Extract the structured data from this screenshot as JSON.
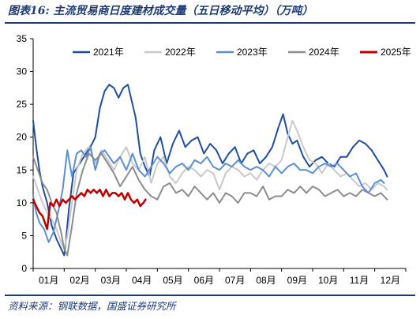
{
  "title": "图表16: 主流贸易商日度建材成交量（五日移动平均）（万吨）",
  "source": "资料来源：钢联数据，国盛证券研究所",
  "chart_data": {
    "type": "line",
    "xlabel": "",
    "ylabel": "",
    "ylim": [
      0,
      35
    ],
    "yticks": [
      0,
      5,
      10,
      15,
      20,
      25,
      30,
      35
    ],
    "xlim": [
      1,
      13
    ],
    "xtick_positions": [
      1,
      2,
      3,
      4,
      5,
      6,
      7,
      8,
      9,
      10,
      11,
      12
    ],
    "xtick_labels": [
      "01月",
      "02月",
      "03月",
      "04月",
      "05月",
      "06月",
      "07月",
      "08月",
      "09月",
      "10月",
      "11月",
      "12月"
    ],
    "grid": false,
    "legend_position": "top",
    "series": [
      {
        "name": "2021年",
        "color": "#1f4e9c",
        "width": 2,
        "x": [
          1.0,
          1.1,
          1.2,
          1.3,
          1.45,
          1.6,
          1.75,
          1.9,
          2.0,
          2.05,
          2.15,
          2.3,
          2.5,
          2.7,
          2.9,
          3.0,
          3.15,
          3.3,
          3.45,
          3.6,
          3.75,
          3.9,
          4.05,
          4.15,
          4.3,
          4.45,
          4.6,
          4.75,
          4.9,
          5.1,
          5.3,
          5.5,
          5.7,
          5.9,
          6.1,
          6.3,
          6.5,
          6.7,
          6.9,
          7.1,
          7.3,
          7.5,
          7.7,
          7.9,
          8.1,
          8.3,
          8.5,
          8.7,
          8.9,
          9.05,
          9.2,
          9.35,
          9.5,
          9.7,
          9.9,
          10.1,
          10.3,
          10.5,
          10.7,
          10.9,
          11.1,
          11.3,
          11.5,
          11.7,
          11.9,
          12.1,
          12.3,
          12.4
        ],
        "y": [
          22.5,
          18.5,
          15.0,
          12.5,
          10.0,
          6.5,
          4.5,
          3.0,
          2.0,
          4.0,
          9.0,
          14.5,
          16.0,
          17.5,
          19.0,
          20.0,
          24.5,
          27.0,
          28.0,
          27.5,
          26.0,
          27.5,
          28.0,
          26.0,
          23.0,
          17.5,
          15.5,
          14.0,
          18.0,
          20.0,
          16.0,
          19.0,
          21.0,
          18.5,
          19.5,
          20.0,
          17.5,
          19.0,
          18.0,
          16.0,
          17.5,
          18.5,
          16.0,
          17.5,
          18.0,
          16.0,
          17.0,
          18.5,
          21.5,
          23.5,
          20.5,
          19.0,
          19.5,
          17.0,
          15.5,
          16.5,
          17.0,
          16.0,
          15.5,
          17.0,
          17.0,
          18.5,
          19.5,
          19.0,
          18.0,
          16.5,
          15.0,
          14.0
        ]
      },
      {
        "name": "2022年",
        "color": "#c9c9c9",
        "width": 2,
        "x": [
          1.0,
          1.15,
          1.3,
          1.45,
          1.6,
          1.75,
          1.9,
          2.0,
          2.1,
          2.25,
          2.4,
          2.6,
          2.8,
          3.0,
          3.2,
          3.4,
          3.6,
          3.8,
          4.0,
          4.2,
          4.4,
          4.6,
          4.8,
          5.0,
          5.2,
          5.4,
          5.6,
          5.8,
          6.0,
          6.2,
          6.4,
          6.6,
          6.8,
          7.0,
          7.2,
          7.4,
          7.6,
          7.8,
          8.0,
          8.2,
          8.4,
          8.6,
          8.8,
          9.0,
          9.2,
          9.35,
          9.5,
          9.7,
          9.9,
          10.1,
          10.3,
          10.5,
          10.7,
          10.9,
          11.1,
          11.3,
          11.5,
          11.7,
          11.9,
          12.1,
          12.3,
          12.4
        ],
        "y": [
          14.0,
          12.0,
          10.0,
          8.5,
          7.5,
          6.0,
          4.0,
          3.0,
          5.0,
          10.0,
          15.0,
          17.5,
          18.5,
          16.0,
          18.0,
          16.5,
          15.0,
          17.0,
          18.5,
          16.0,
          15.0,
          17.0,
          13.0,
          16.0,
          17.0,
          14.0,
          13.0,
          14.5,
          15.5,
          15.0,
          14.0,
          15.0,
          14.5,
          12.0,
          14.5,
          15.5,
          15.0,
          14.0,
          14.5,
          13.5,
          15.0,
          16.0,
          15.5,
          16.5,
          20.0,
          22.5,
          21.0,
          18.5,
          16.5,
          16.0,
          14.5,
          16.0,
          15.0,
          14.0,
          14.5,
          13.5,
          12.5,
          13.0,
          12.0,
          13.0,
          12.5,
          12.0
        ]
      },
      {
        "name": "2023年",
        "color": "#5b8fd3",
        "width": 2,
        "x": [
          1.0,
          1.1,
          1.2,
          1.35,
          1.5,
          1.65,
          1.8,
          1.95,
          2.1,
          2.25,
          2.4,
          2.55,
          2.7,
          2.85,
          3.0,
          3.15,
          3.3,
          3.45,
          3.6,
          3.8,
          4.0,
          4.2,
          4.4,
          4.6,
          4.8,
          5.0,
          5.2,
          5.4,
          5.6,
          5.8,
          6.0,
          6.2,
          6.4,
          6.6,
          6.8,
          7.0,
          7.2,
          7.4,
          7.6,
          7.8,
          8.0,
          8.2,
          8.4,
          8.6,
          8.8,
          9.0,
          9.2,
          9.4,
          9.6,
          9.8,
          10.0,
          10.2,
          10.4,
          10.6,
          10.8,
          11.0,
          11.2,
          11.4,
          11.6,
          11.8,
          12.0,
          12.2,
          12.3
        ],
        "y": [
          11.0,
          8.5,
          7.0,
          6.0,
          4.0,
          5.5,
          8.5,
          12.0,
          18.0,
          14.0,
          17.5,
          18.0,
          17.0,
          18.5,
          15.0,
          17.5,
          18.0,
          17.0,
          16.0,
          17.0,
          15.0,
          17.5,
          15.0,
          14.0,
          15.5,
          17.0,
          16.0,
          14.5,
          15.5,
          16.0,
          15.0,
          16.5,
          16.0,
          17.0,
          15.5,
          15.0,
          16.0,
          15.5,
          16.5,
          15.5,
          15.0,
          15.5,
          15.0,
          14.0,
          15.5,
          14.5,
          15.5,
          16.0,
          15.0,
          15.0,
          14.5,
          15.5,
          16.0,
          15.5,
          16.0,
          15.0,
          14.0,
          14.5,
          12.5,
          11.5,
          13.0,
          13.5,
          13.0
        ]
      },
      {
        "name": "2024年",
        "color": "#8c8c8c",
        "width": 2,
        "x": [
          1.0,
          1.15,
          1.3,
          1.45,
          1.6,
          1.75,
          1.9,
          2.0,
          2.1,
          2.25,
          2.4,
          2.6,
          2.8,
          3.0,
          3.2,
          3.4,
          3.6,
          3.8,
          4.0,
          4.2,
          4.4,
          4.6,
          4.8,
          5.0,
          5.2,
          5.4,
          5.6,
          5.8,
          6.0,
          6.2,
          6.4,
          6.6,
          6.8,
          7.0,
          7.2,
          7.4,
          7.6,
          7.8,
          8.0,
          8.2,
          8.4,
          8.6,
          8.8,
          9.0,
          9.2,
          9.4,
          9.6,
          9.8,
          10.0,
          10.2,
          10.4,
          10.6,
          10.8,
          11.0,
          11.2,
          11.4,
          11.6,
          11.8,
          12.0,
          12.2,
          12.4
        ],
        "y": [
          17.0,
          15.0,
          13.0,
          12.0,
          10.0,
          8.5,
          5.5,
          3.0,
          2.0,
          6.5,
          11.5,
          15.0,
          17.5,
          16.5,
          17.5,
          16.0,
          14.5,
          12.5,
          14.0,
          15.5,
          13.5,
          12.0,
          11.0,
          10.5,
          12.5,
          13.0,
          11.5,
          12.0,
          11.0,
          12.5,
          11.5,
          10.5,
          11.5,
          10.0,
          11.5,
          11.0,
          10.0,
          11.5,
          11.5,
          11.0,
          12.5,
          10.5,
          11.0,
          11.0,
          12.0,
          11.5,
          12.5,
          11.5,
          12.5,
          12.0,
          11.0,
          11.5,
          12.0,
          11.0,
          11.5,
          11.0,
          12.0,
          11.5,
          11.0,
          11.5,
          10.5
        ]
      },
      {
        "name": "2025年",
        "color": "#c00000",
        "width": 2.5,
        "x": [
          1.0,
          1.1,
          1.2,
          1.3,
          1.45,
          1.55,
          1.65,
          1.75,
          1.85,
          1.95,
          2.05,
          2.15,
          2.25,
          2.35,
          2.45,
          2.55,
          2.65,
          2.75,
          2.85,
          2.95,
          3.05,
          3.15,
          3.25,
          3.35,
          3.45,
          3.55,
          3.65,
          3.75,
          3.85,
          3.95,
          4.05,
          4.15,
          4.25,
          4.35,
          4.45,
          4.55,
          4.62
        ],
        "y": [
          10.5,
          9.5,
          8.5,
          8.0,
          6.0,
          10.0,
          9.5,
          10.5,
          9.5,
          10.5,
          10.0,
          10.5,
          11.0,
          10.5,
          11.0,
          11.5,
          11.0,
          12.0,
          11.5,
          12.0,
          11.5,
          12.0,
          11.0,
          12.0,
          11.0,
          11.5,
          11.5,
          11.0,
          11.5,
          10.5,
          11.5,
          10.5,
          10.0,
          10.5,
          9.5,
          10.0,
          10.5
        ]
      }
    ]
  }
}
